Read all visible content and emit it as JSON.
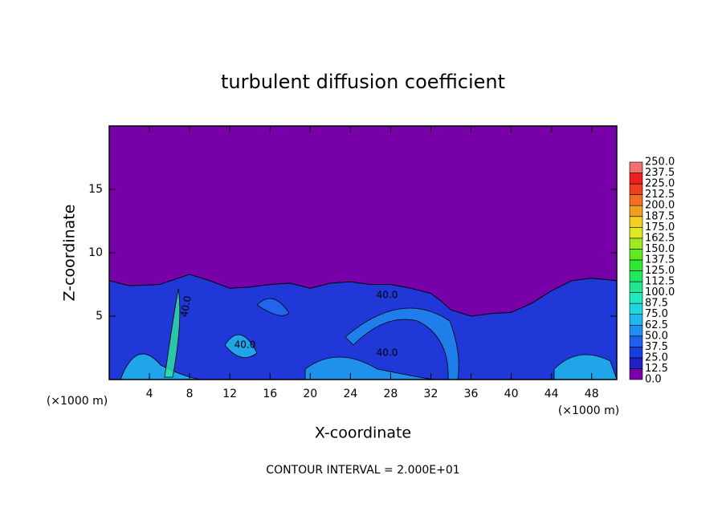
{
  "chart_data": {
    "type": "contour",
    "title": "turbulent diffusion coefficient",
    "xlabel": "X-coordinate",
    "ylabel": "Z-coordinate",
    "x_unit": "(×1000 m)",
    "y_unit": "(×1000 m)",
    "footnote": "CONTOUR INTERVAL = 2.000E+01",
    "xlim": [
      0,
      50.5
    ],
    "ylim": [
      0,
      20
    ],
    "xticks": [
      4,
      8,
      12,
      16,
      20,
      24,
      28,
      32,
      36,
      40,
      44,
      48
    ],
    "yticks": [
      5,
      10,
      15
    ],
    "background_color": "#7800a8",
    "layer": {
      "color": "#2038d8",
      "x": [
        0,
        2,
        5,
        8,
        10,
        12,
        14,
        16,
        18,
        20,
        22,
        24,
        26,
        28,
        30,
        32,
        33,
        34,
        36,
        38,
        40,
        42,
        44,
        46,
        48,
        50.5
      ],
      "z": [
        7.8,
        7.4,
        7.5,
        8.3,
        7.8,
        7.2,
        7.3,
        7.5,
        7.6,
        7.2,
        7.6,
        7.7,
        7.5,
        7.5,
        7.2,
        6.8,
        6.2,
        5.5,
        5.0,
        5.2,
        5.3,
        6.0,
        7.0,
        7.8,
        8.0,
        7.8
      ]
    },
    "annotations": [
      "40.0",
      "40.0",
      "40.0",
      "40.0"
    ],
    "colorbar": {
      "levels": [
        {
          "value": 0,
          "label": "0.0"
        },
        12.5,
        {
          "value": 25,
          "label": "25.0"
        },
        37.5,
        {
          "value": 50,
          "label": "50.0"
        },
        62.5,
        {
          "value": 75,
          "label": "75.0"
        },
        87.5,
        {
          "value": 100,
          "label": "100.0"
        },
        112.5,
        {
          "value": 125,
          "label": "125.0"
        },
        137.5,
        {
          "value": 150,
          "label": "150.0"
        },
        162.5,
        {
          "value": 175,
          "label": "175.0"
        },
        187.5,
        {
          "value": 200,
          "label": "200.0"
        },
        212.5,
        {
          "value": 225,
          "label": "225.0"
        },
        237.5,
        {
          "value": 250,
          "label": "250.0"
        }
      ],
      "colors": [
        "#7800a8",
        "#2020c8",
        "#1840e0",
        "#2060f0",
        "#2090f0",
        "#20b8f0",
        "#20d8e0",
        "#20e8c0",
        "#20e890",
        "#20e860",
        "#30e830",
        "#60e820",
        "#a0e820",
        "#e0e820",
        "#f0d020",
        "#f0a020",
        "#f07020",
        "#f04020",
        "#f02020",
        "#f07070"
      ]
    }
  }
}
